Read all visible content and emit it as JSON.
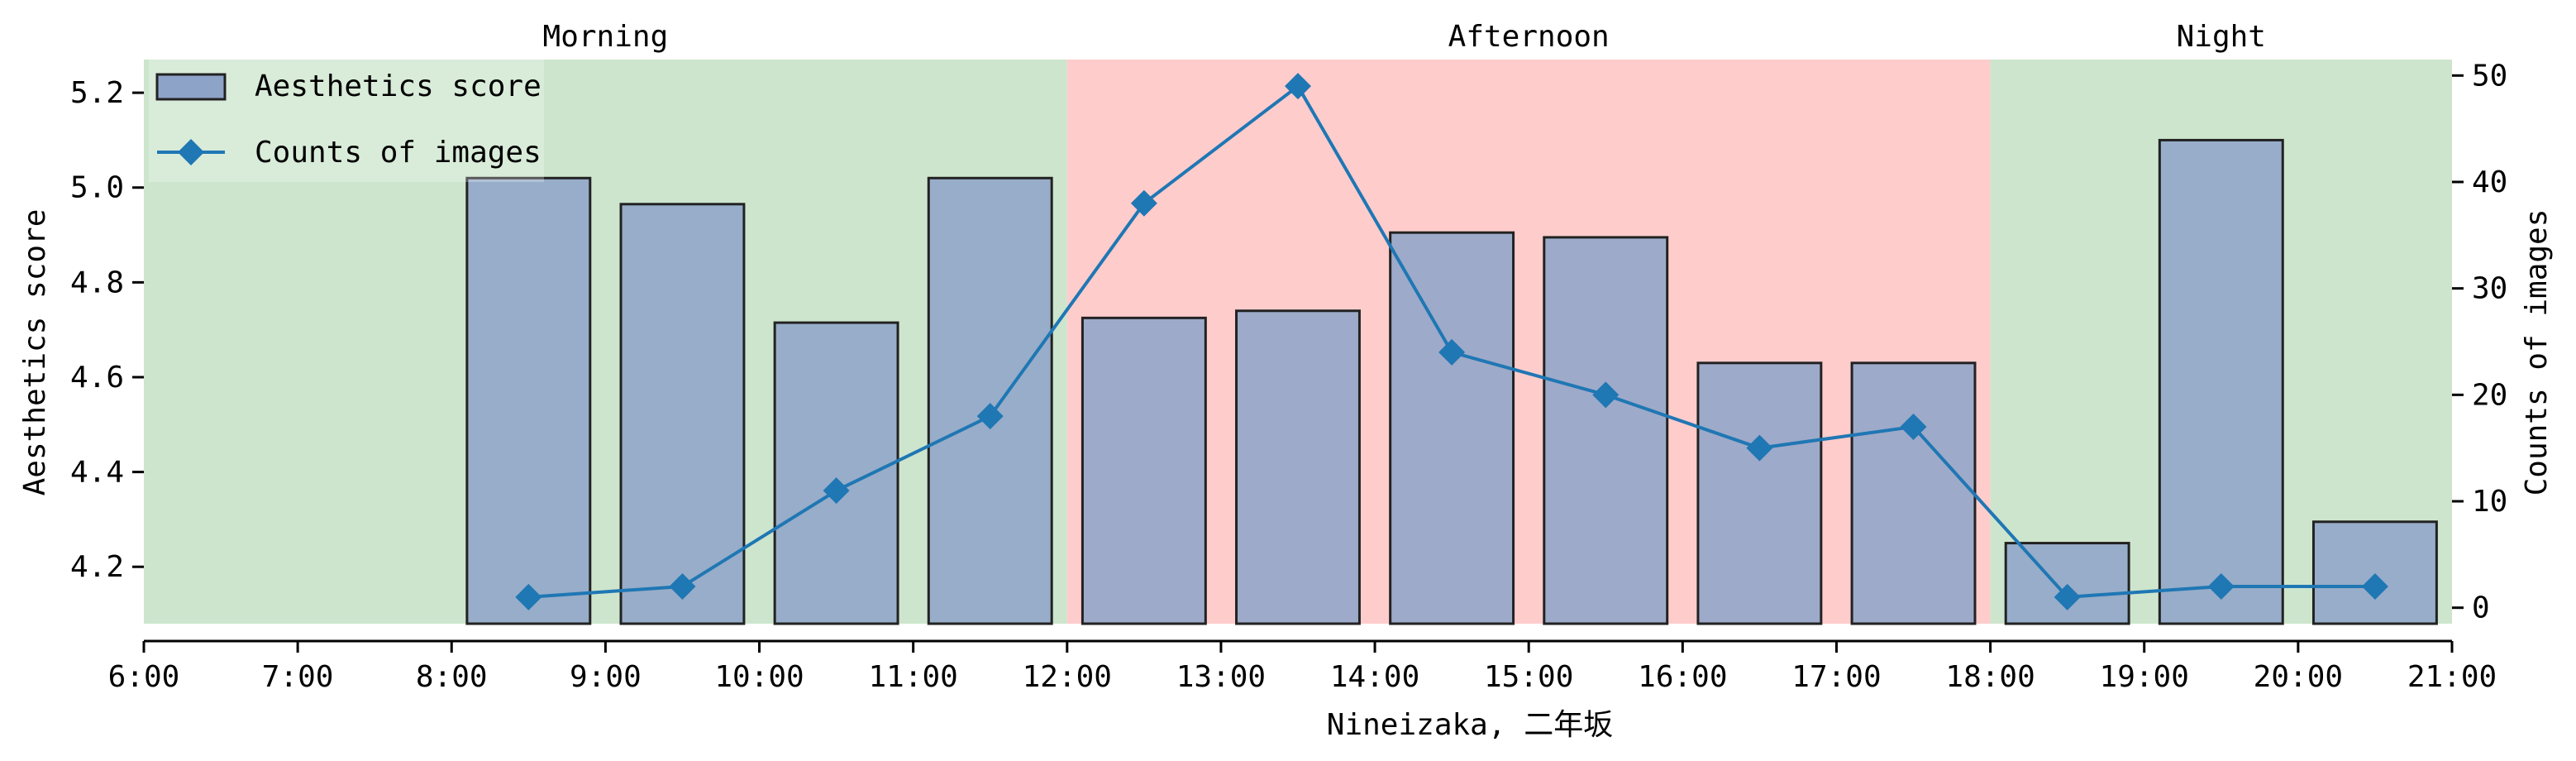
{
  "chart_data": {
    "type": "bar",
    "xlabel": "Nineizaka, 二年坂",
    "ylabel": "Aesthetics score",
    "y2label": "Counts of images",
    "xlim": [
      6,
      21
    ],
    "ylim": [
      4.08,
      5.27
    ],
    "y2lim": [
      -1.5,
      51.5
    ],
    "x_ticks": [
      6,
      7,
      8,
      9,
      10,
      11,
      12,
      13,
      14,
      15,
      16,
      17,
      18,
      19,
      20,
      21
    ],
    "x_tick_labels": [
      "6:00",
      "7:00",
      "8:00",
      "9:00",
      "10:00",
      "11:00",
      "12:00",
      "13:00",
      "14:00",
      "15:00",
      "16:00",
      "17:00",
      "18:00",
      "19:00",
      "20:00",
      "21:00"
    ],
    "y_ticks": [
      4.2,
      4.4,
      4.6,
      4.8,
      5.0,
      5.2
    ],
    "y_tick_labels": [
      "4.2",
      "4.4",
      "4.6",
      "4.8",
      "5.0",
      "5.2"
    ],
    "y2_ticks": [
      0,
      10,
      20,
      30,
      40,
      50
    ],
    "y2_tick_labels": [
      "0",
      "10",
      "20",
      "30",
      "40",
      "50"
    ],
    "periods": [
      {
        "label": "Morning",
        "start": 6,
        "end": 12,
        "color": "#cde5cd"
      },
      {
        "label": "Afternoon",
        "start": 12,
        "end": 18,
        "color": "#ffcccc"
      },
      {
        "label": "Night",
        "start": 18,
        "end": 21,
        "color": "#cde5cd"
      }
    ],
    "bar_color": "#8da3c8",
    "bar_edge_color": "#222222",
    "line_color": "#1f77b4",
    "legend_position": "top-left",
    "x": [
      8.5,
      9.5,
      10.5,
      11.5,
      12.5,
      13.5,
      14.5,
      15.5,
      16.5,
      17.5,
      18.5,
      19.5,
      20.5
    ],
    "series": [
      {
        "name": "Aesthetics score",
        "type": "bar",
        "axis": "left",
        "values": [
          5.02,
          4.965,
          4.715,
          5.02,
          4.725,
          4.74,
          4.905,
          4.895,
          4.63,
          4.63,
          4.25,
          5.1,
          4.295
        ]
      },
      {
        "name": "Counts of images",
        "type": "line",
        "axis": "right",
        "marker": "diamond",
        "values": [
          1,
          2,
          11,
          18,
          38,
          49,
          24,
          20,
          15,
          17,
          1,
          2,
          2
        ]
      }
    ]
  }
}
